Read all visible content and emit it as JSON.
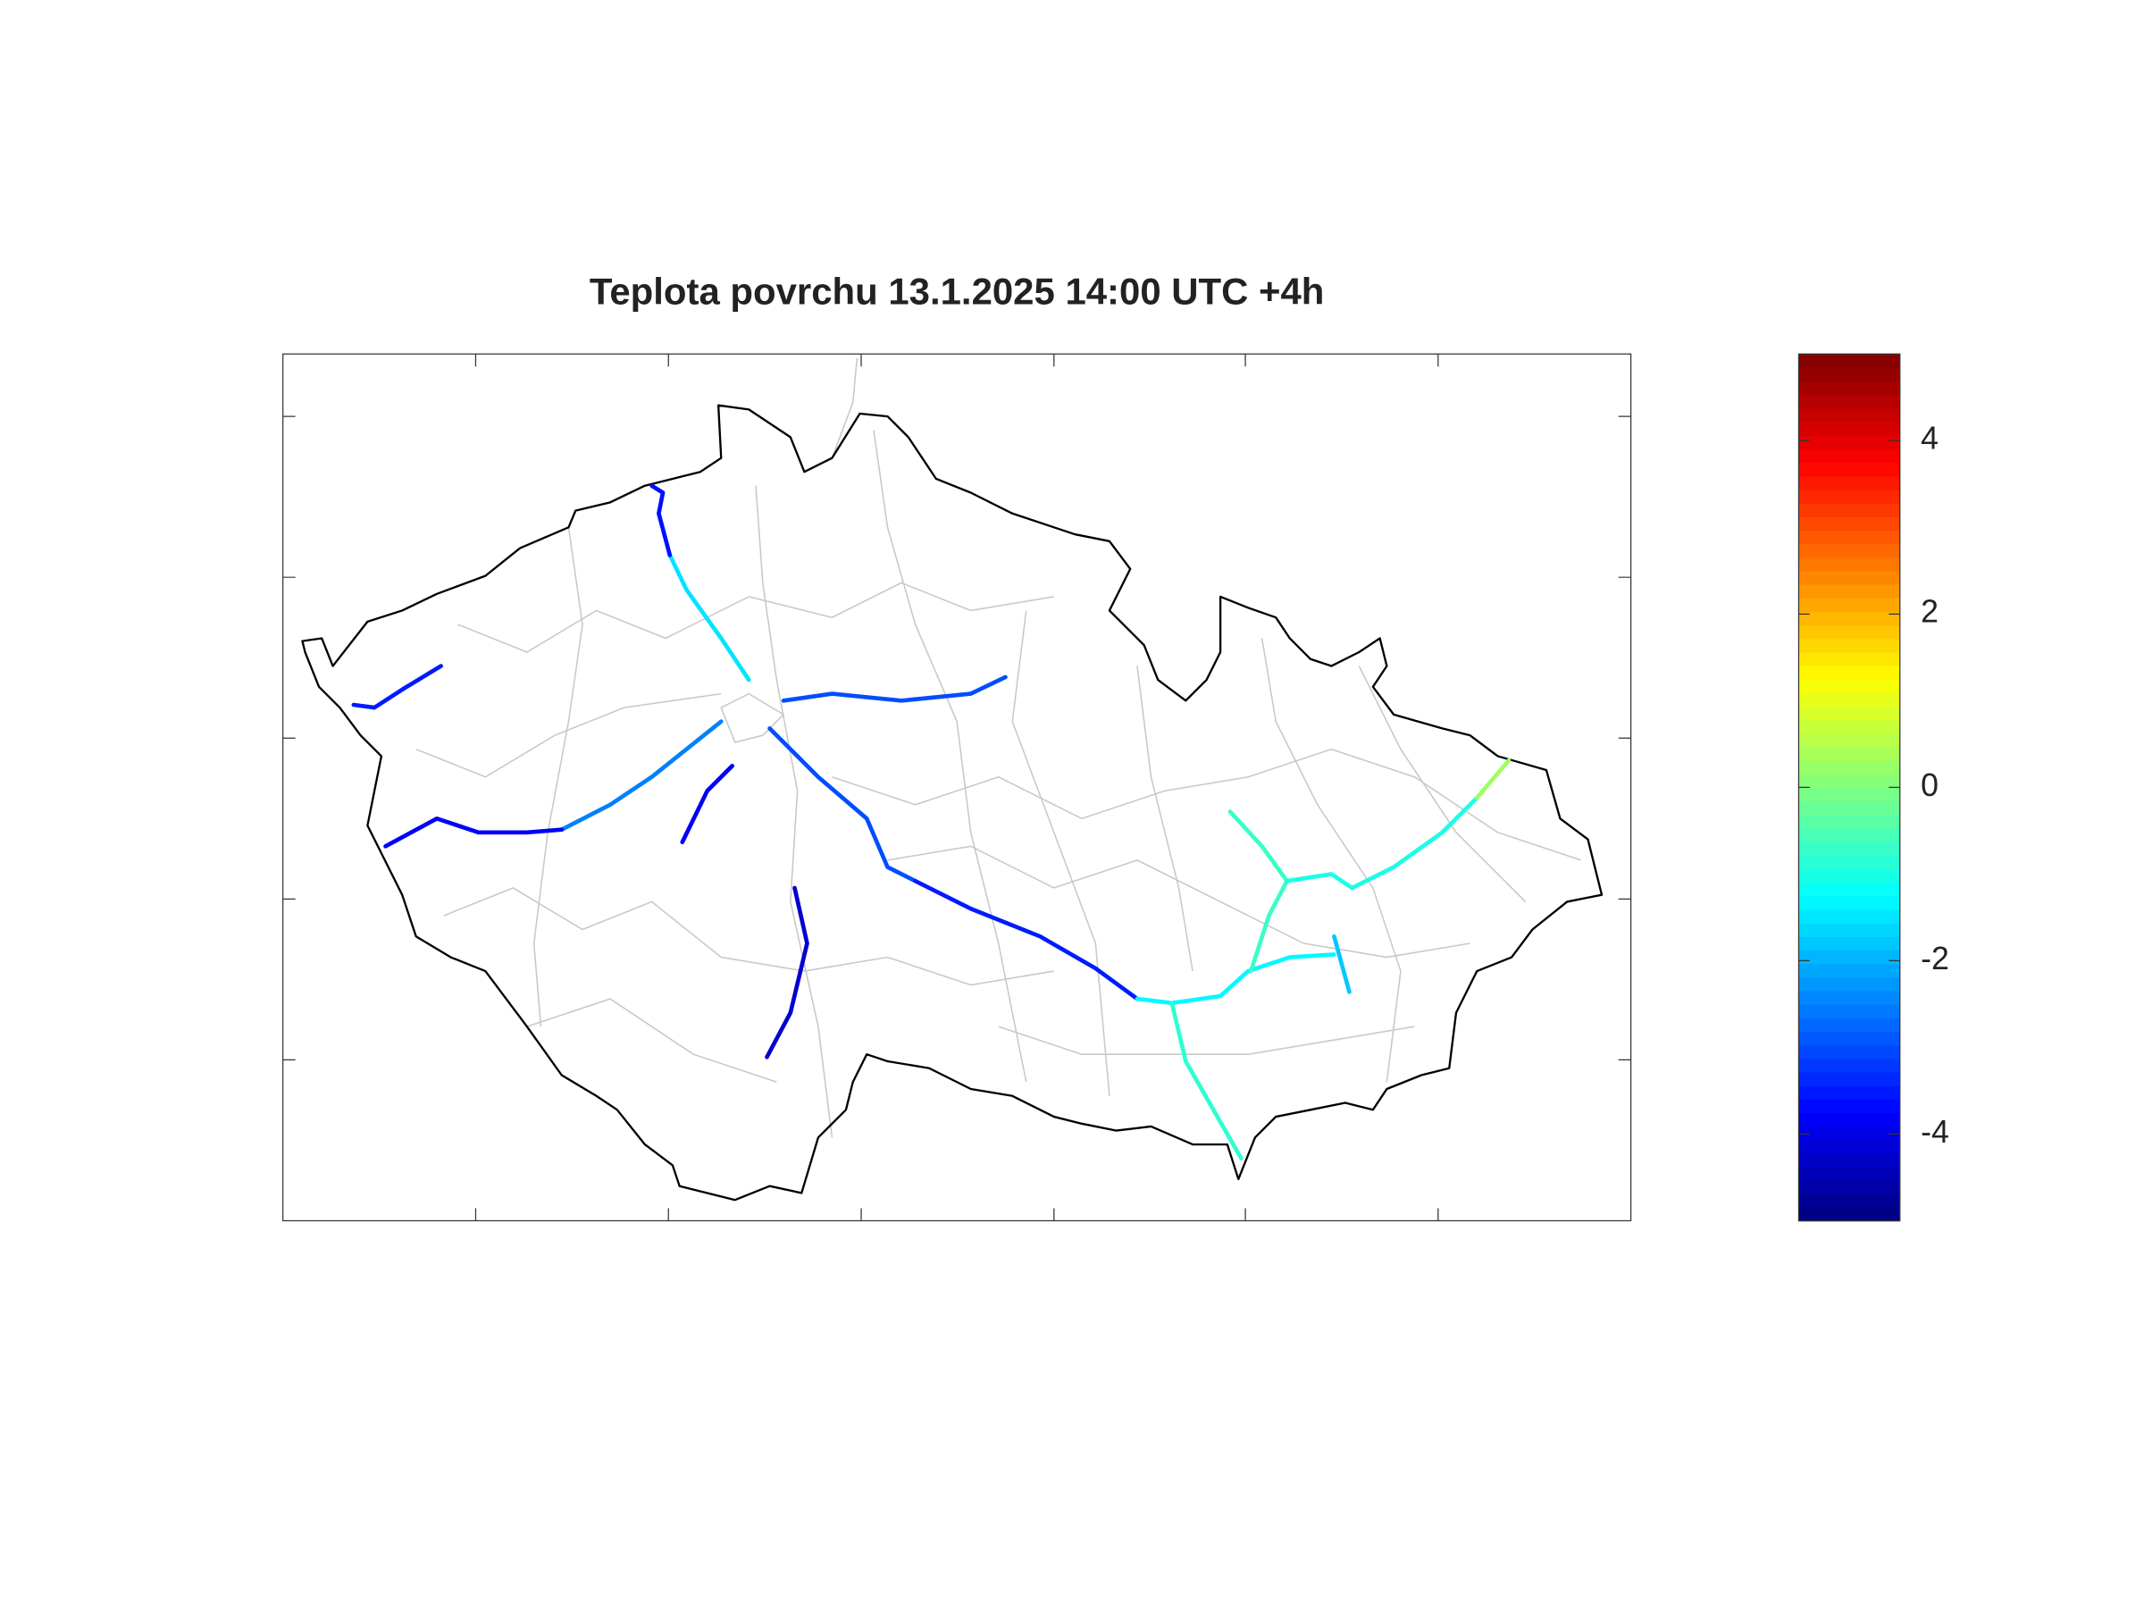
{
  "chart_data": {
    "type": "map",
    "title": "Teplota povrchu 13.1.2025 14:00 UTC +4h",
    "values": [
      -1.5,
      -3.6,
      -3.5,
      -3.0,
      -2.5,
      -3.8,
      -3.8,
      -4.2,
      -3.0,
      -3.5,
      -1.3,
      -0.8,
      -0.7,
      -1.0,
      0.3,
      -1.8
    ],
    "clim": [
      -5,
      5
    ],
    "cticks": [
      -4,
      -2,
      0,
      2,
      4
    ],
    "colormap": "jet"
  }
}
